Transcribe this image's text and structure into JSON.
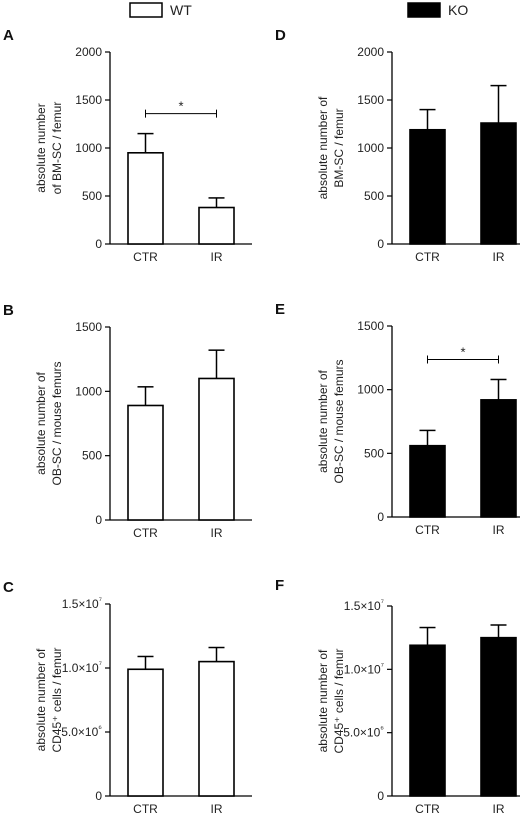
{
  "legend": [
    {
      "label": "WT",
      "fill": "#ffffff"
    },
    {
      "label": "KO",
      "fill": "#000000"
    }
  ],
  "chart_data": [
    {
      "panel": "A",
      "type": "bar",
      "group": "WT",
      "categories": [
        "CTR",
        "IR"
      ],
      "values": [
        950,
        380
      ],
      "errors": [
        200,
        100
      ],
      "ylabel": [
        "absolute number",
        "of BM-SC / femur"
      ],
      "ylim": [
        0,
        2000
      ],
      "ticks": [
        0,
        500,
        1000,
        1500,
        2000
      ],
      "tick_labels": [
        "0",
        "500",
        "1000",
        "1500",
        "2000"
      ],
      "significance": {
        "between": [
          0,
          1
        ],
        "label": "*"
      },
      "color": "#ffffff"
    },
    {
      "panel": "B",
      "type": "bar",
      "group": "WT",
      "categories": [
        "CTR",
        "IR"
      ],
      "values": [
        890,
        1100
      ],
      "errors": [
        145,
        220
      ],
      "ylabel": [
        "absolute number of",
        "OB-SC / mouse femurs"
      ],
      "ylim": [
        0,
        1500
      ],
      "ticks": [
        0,
        500,
        1000,
        1500
      ],
      "tick_labels": [
        "0",
        "500",
        "1000",
        "1500"
      ],
      "color": "#ffffff"
    },
    {
      "panel": "C",
      "type": "bar",
      "group": "WT",
      "categories": [
        "CTR",
        "IR"
      ],
      "values": [
        9900000,
        10500000
      ],
      "errors": [
        1000000,
        1100000
      ],
      "ylabel": [
        "absolute number of",
        "CD45⁺ cells / femur"
      ],
      "ylim": [
        0,
        15000000
      ],
      "ticks": [
        0,
        5000000,
        10000000,
        15000000
      ],
      "tick_labels": [
        "0",
        "5.0×10⁶",
        "1.0×10⁷",
        "1.5×10⁷"
      ],
      "color": "#ffffff"
    },
    {
      "panel": "D",
      "type": "bar",
      "group": "KO",
      "categories": [
        "CTR",
        "IR"
      ],
      "values": [
        1190,
        1260
      ],
      "errors": [
        210,
        390
      ],
      "ylabel": [
        "absolute number of",
        "BM-SC / femur"
      ],
      "ylim": [
        0,
        2000
      ],
      "ticks": [
        0,
        500,
        1000,
        1500,
        2000
      ],
      "tick_labels": [
        "0",
        "500",
        "1000",
        "1500",
        "2000"
      ],
      "color": "#000000"
    },
    {
      "panel": "E",
      "type": "bar",
      "group": "KO",
      "categories": [
        "CTR",
        "IR"
      ],
      "values": [
        560,
        920
      ],
      "errors": [
        120,
        160
      ],
      "ylabel": [
        "absolute number of",
        "OB-SC / mouse femurs"
      ],
      "ylim": [
        0,
        1500
      ],
      "ticks": [
        0,
        500,
        1000,
        1500
      ],
      "tick_labels": [
        "0",
        "500",
        "1000",
        "1500"
      ],
      "significance": {
        "between": [
          0,
          1
        ],
        "label": "*"
      },
      "color": "#000000"
    },
    {
      "panel": "F",
      "type": "bar",
      "group": "KO",
      "categories": [
        "CTR",
        "IR"
      ],
      "values": [
        11900000,
        12500000
      ],
      "errors": [
        1400000,
        1000000
      ],
      "ylabel": [
        "absolute number of",
        "CD45⁺ cells / femur"
      ],
      "ylim": [
        0,
        15000000
      ],
      "ticks": [
        0,
        5000000,
        10000000,
        15000000
      ],
      "tick_labels": [
        "0",
        "5.0×10⁶",
        "1.0×10⁷",
        "1.5×10⁷"
      ],
      "color": "#000000"
    }
  ]
}
